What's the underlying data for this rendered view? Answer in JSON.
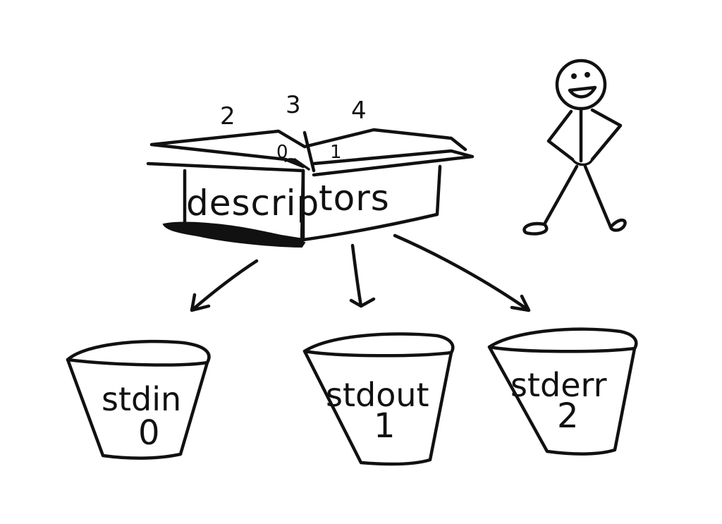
{
  "box": {
    "label_left": "descrip",
    "label_right": "tors",
    "flap_numbers": [
      "2",
      "3",
      "4",
      "0",
      "1"
    ]
  },
  "buckets": [
    {
      "name": "stdin",
      "number": "0"
    },
    {
      "name": "stdout",
      "number": "1"
    },
    {
      "name": "stderr",
      "number": "2"
    }
  ]
}
